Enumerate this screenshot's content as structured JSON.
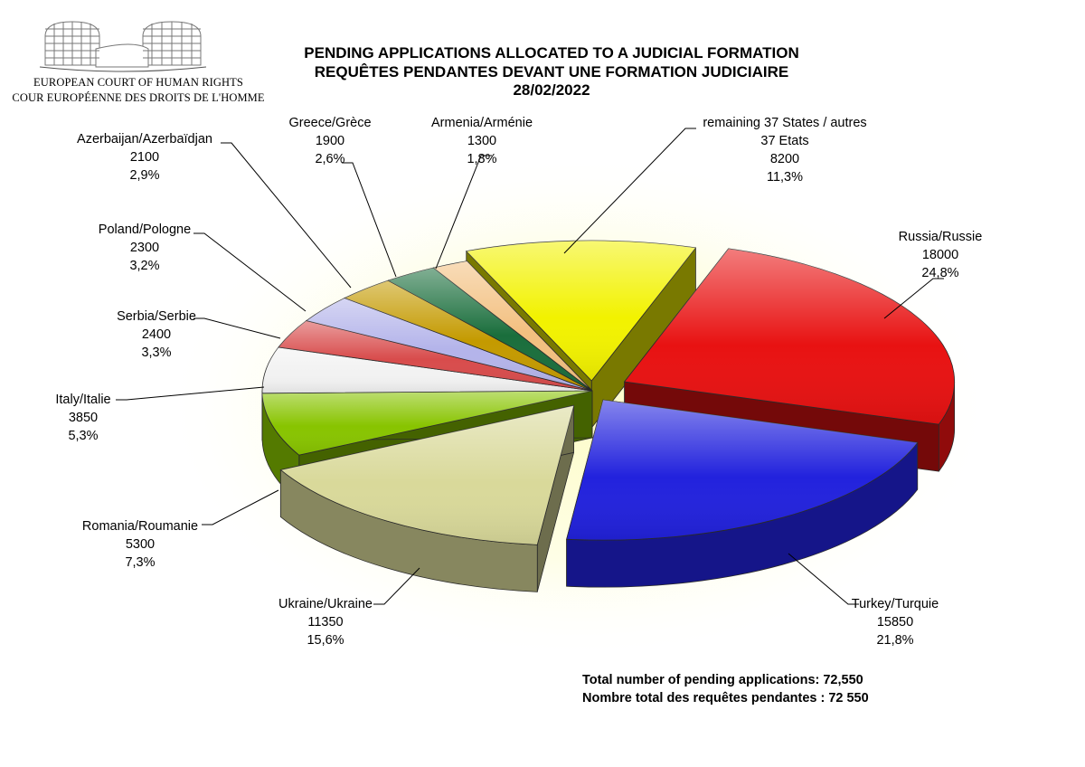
{
  "header": {
    "logo_line1": "EUROPEAN COURT OF HUMAN RIGHTS",
    "logo_line2": "COUR EUROPÉENNE DES DROITS DE L'HOMME",
    "title_line1": "PENDING APPLICATIONS ALLOCATED TO A JUDICIAL FORMATION",
    "title_line2": "REQUÊTES PENDANTES DEVANT UNE FORMATION JUDICIAIRE",
    "title_line3": "28/02/2022"
  },
  "chart_data": {
    "type": "pie",
    "title": "PENDING APPLICATIONS ALLOCATED TO A JUDICIAL FORMATION / REQUÊTES PENDANTES DEVANT UNE FORMATION JUDICIAIRE",
    "date": "28/02/2022",
    "legend": "none",
    "slices": [
      {
        "name": "Russia/Russie",
        "name2": "",
        "value": 18000,
        "percent": "24,8%",
        "color": "#e81212"
      },
      {
        "name": "Turkey/Turquie",
        "name2": "",
        "value": 15850,
        "percent": "21,8%",
        "color": "#2222dd"
      },
      {
        "name": "Ukraine/Ukraine",
        "name2": "",
        "value": 11350,
        "percent": "15,6%",
        "color": "#d9d99a"
      },
      {
        "name": "Romania/Roumanie",
        "name2": "",
        "value": 5300,
        "percent": "7,3%",
        "color": "#88c400"
      },
      {
        "name": "Italy/Italie",
        "name2": "",
        "value": 3850,
        "percent": "5,3%",
        "color": "#f2f2f2"
      },
      {
        "name": "Serbia/Serbie",
        "name2": "",
        "value": 2400,
        "percent": "3,3%",
        "color": "#d84c4c"
      },
      {
        "name": "Poland/Pologne",
        "name2": "",
        "value": 2300,
        "percent": "3,2%",
        "color": "#b4b4ea"
      },
      {
        "name": "Azerbaijan/Azerbaïdjan",
        "name2": "",
        "value": 2100,
        "percent": "2,9%",
        "color": "#c49a00"
      },
      {
        "name": "Greece/Grèce",
        "name2": "",
        "value": 1900,
        "percent": "2,6%",
        "color": "#1a6e3c"
      },
      {
        "name": "Armenia/Arménie",
        "name2": "",
        "value": 1300,
        "percent": "1,8%",
        "color": "#f3c080"
      },
      {
        "name": "remaining 37 States / autres",
        "name2": "37 Etats",
        "value": 8200,
        "percent": "11,3%",
        "color": "#f2f200"
      }
    ],
    "total_en": "Total number of pending applications:  72,550",
    "total_fr": "Nombre total des requêtes pendantes : 72 550"
  }
}
